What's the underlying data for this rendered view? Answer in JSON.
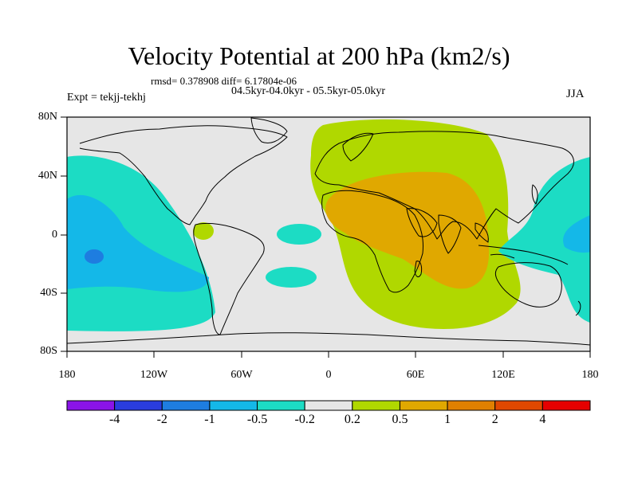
{
  "map": {
    "title": "Velocity Potential at 200 hPa (km2/s)",
    "stat_line": "rmsd= 0.378908 diff= 6.17804e-06",
    "periods": "04.5kyr-04.0kyr - 05.5kyr-05.0kyr",
    "experiment": "Expt = tekjj-tekhj",
    "season": "JJA",
    "y_ticks": [
      "80N",
      "40N",
      "0",
      "40S",
      "80S"
    ],
    "x_ticks": [
      "180",
      "120W",
      "60W",
      "0",
      "60E",
      "120E",
      "180"
    ],
    "background_color": "#e6e6e6"
  },
  "colorbar": {
    "colors": [
      "#8a14e8",
      "#2a3ddd",
      "#1e7de0",
      "#14b8e8",
      "#1cdcc4",
      "#e6e6e6",
      "#b0d800",
      "#e0a800",
      "#e08000",
      "#e04800",
      "#e60000"
    ],
    "labels": [
      "-4",
      "-2",
      "-1",
      "-0.5",
      "-0.2",
      "0.2",
      "0.5",
      "1",
      "2",
      "4"
    ]
  }
}
